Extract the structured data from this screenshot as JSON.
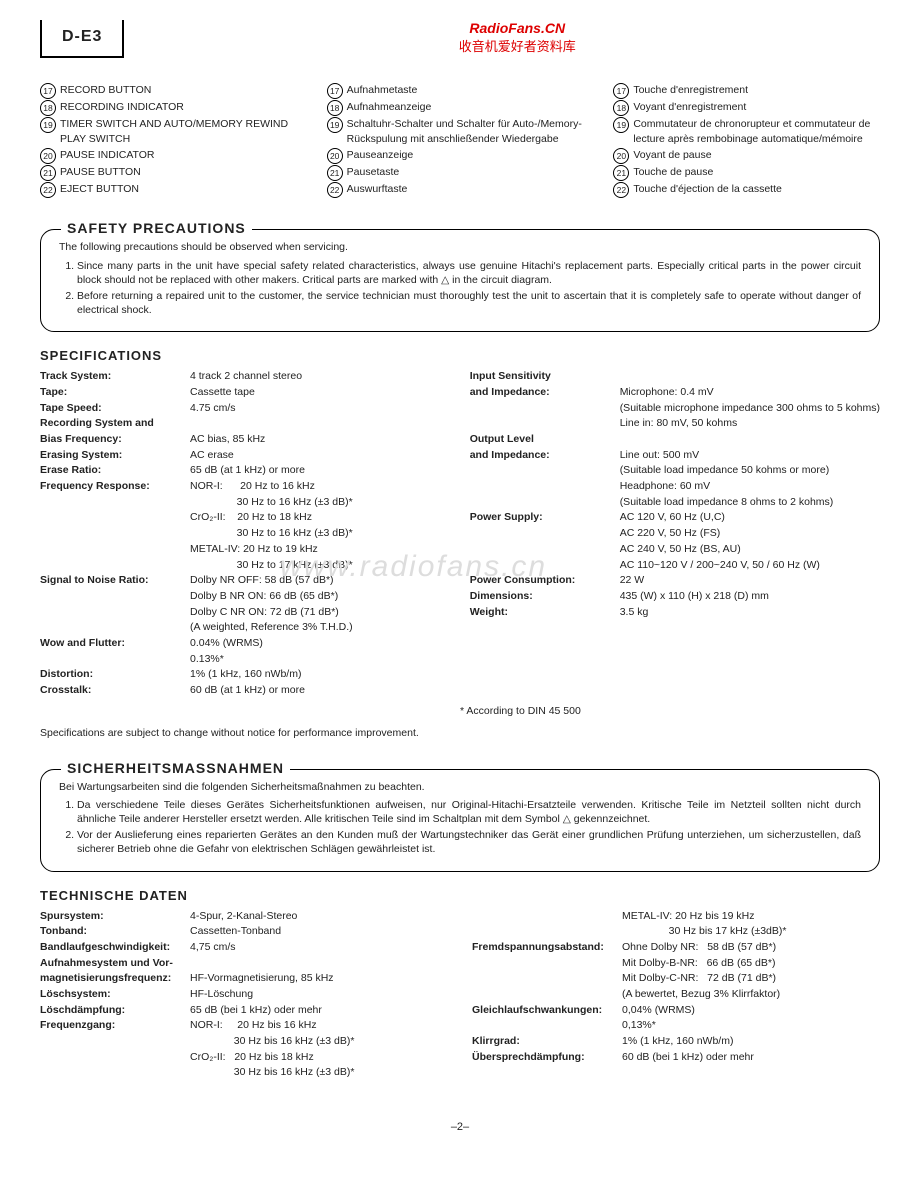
{
  "model": "D-E3",
  "watermark": {
    "url": "RadioFans.CN",
    "cn": "收音机爱好者资料库",
    "bg": "www.radiofans.cn"
  },
  "controls": {
    "en": [
      {
        "n": "17",
        "t": "RECORD BUTTON"
      },
      {
        "n": "18",
        "t": "RECORDING INDICATOR"
      },
      {
        "n": "19",
        "t": "TIMER SWITCH AND AUTO/MEMORY REWIND PLAY SWITCH"
      },
      {
        "n": "20",
        "t": "PAUSE INDICATOR"
      },
      {
        "n": "21",
        "t": "PAUSE BUTTON"
      },
      {
        "n": "22",
        "t": "EJECT BUTTON"
      }
    ],
    "de": [
      {
        "n": "17",
        "t": "Aufnahmetaste"
      },
      {
        "n": "18",
        "t": "Aufnahmeanzeige"
      },
      {
        "n": "19",
        "t": "Schaltuhr-Schalter und Schalter für Auto-/Memory-Rückspulung mit anschließender Wiedergabe"
      },
      {
        "n": "20",
        "t": "Pauseanzeige"
      },
      {
        "n": "21",
        "t": "Pausetaste"
      },
      {
        "n": "22",
        "t": "Auswurftaste"
      }
    ],
    "fr": [
      {
        "n": "17",
        "t": "Touche d'enregistrement"
      },
      {
        "n": "18",
        "t": "Voyant d'enregistrement"
      },
      {
        "n": "19",
        "t": "Commutateur de chronorupteur et commutateur de lecture après rembobinage automatique/mémoire"
      },
      {
        "n": "20",
        "t": "Voyant de pause"
      },
      {
        "n": "21",
        "t": "Touche de pause"
      },
      {
        "n": "22",
        "t": "Touche d'éjection de la cassette"
      }
    ]
  },
  "safety_en": {
    "title": "SAFETY PRECAUTIONS",
    "intro": "The following precautions should be observed when servicing.",
    "items": [
      "Since many parts in the unit have special safety related characteristics, always use genuine Hitachi's replacement parts. Especially critical parts in the power circuit block should not be replaced with other makers. Critical parts are marked with △ in the circuit diagram.",
      "Before returning a repaired unit to the customer, the service technician must thoroughly test the unit to ascertain that it is completely safe to operate without danger of electrical shock."
    ]
  },
  "specs_title": "SPECIFICATIONS",
  "specs_left": [
    {
      "l": "Track System:",
      "v": "4 track 2 channel stereo"
    },
    {
      "l": "Tape:",
      "v": "Cassette tape"
    },
    {
      "l": "Tape Speed:",
      "v": "4.75 cm/s"
    },
    {
      "l": "Recording System and",
      "v": ""
    },
    {
      "l": "Bias Frequency:",
      "v": "AC bias, 85 kHz"
    },
    {
      "l": "Erasing System:",
      "v": "AC erase"
    },
    {
      "l": "Erase Ratio:",
      "v": "65 dB (at 1 kHz) or more"
    },
    {
      "l": "Frequency Response:",
      "v": "NOR-I:      20 Hz to 16 kHz"
    },
    {
      "l": "",
      "v": "                30 Hz to 16 kHz (±3 dB)*"
    },
    {
      "l": "",
      "v": "CrO₂-II:    20 Hz to 18 kHz"
    },
    {
      "l": "",
      "v": "                30 Hz to 16 kHz (±3 dB)*"
    },
    {
      "l": "",
      "v": "METAL-IV: 20 Hz to 19 kHz"
    },
    {
      "l": "",
      "v": "                30 Hz to 17 kHz (±3 dB)*"
    },
    {
      "l": "Signal to Noise Ratio:",
      "v": "Dolby NR OFF: 58 dB (57 dB*)"
    },
    {
      "l": "",
      "v": "Dolby B NR ON: 66 dB (65 dB*)"
    },
    {
      "l": "",
      "v": "Dolby C NR ON: 72 dB (71 dB*)"
    },
    {
      "l": "",
      "v": "(A weighted, Reference 3% T.H.D.)"
    },
    {
      "l": "Wow and Flutter:",
      "v": "0.04% (WRMS)"
    },
    {
      "l": "",
      "v": "0.13%*"
    },
    {
      "l": "Distortion:",
      "v": "1% (1 kHz, 160 nWb/m)"
    },
    {
      "l": "Crosstalk:",
      "v": "60 dB (at 1 kHz) or more"
    }
  ],
  "specs_right": [
    {
      "l": "Input Sensitivity",
      "v": ""
    },
    {
      "l": "and Impedance:",
      "v": "Microphone: 0.4 mV"
    },
    {
      "l": "",
      "v": "(Suitable microphone impedance 300 ohms to 5 kohms)"
    },
    {
      "l": "",
      "v": "Line in: 80 mV, 50 kohms"
    },
    {
      "l": "Output Level",
      "v": ""
    },
    {
      "l": "and Impedance:",
      "v": "Line out: 500 mV"
    },
    {
      "l": "",
      "v": "(Suitable load impedance 50 kohms or more)"
    },
    {
      "l": "",
      "v": "Headphone: 60 mV"
    },
    {
      "l": "",
      "v": "(Suitable load impedance 8 ohms to 2 kohms)"
    },
    {
      "l": "Power Supply:",
      "v": "AC 120 V, 60 Hz (U,C)"
    },
    {
      "l": "",
      "v": "AC 220 V, 50 Hz (FS)"
    },
    {
      "l": "",
      "v": "AC 240 V, 50 Hz (BS, AU)"
    },
    {
      "l": "",
      "v": "AC 110~120 V / 200~240 V, 50 / 60 Hz (W)"
    },
    {
      "l": "Power Consumption:",
      "v": "22 W"
    },
    {
      "l": "Dimensions:",
      "v": "435 (W) x 110 (H) x 218 (D) mm"
    },
    {
      "l": "Weight:",
      "v": "3.5 kg"
    }
  ],
  "din_note": "* According to DIN 45 500",
  "change_note": "Specifications are subject to change without notice for performance improvement.",
  "safety_de": {
    "title": "SICHERHEITSMASSNAHMEN",
    "intro": "Bei Wartungsarbeiten sind die folgenden Sicherheitsmaßnahmen zu beachten.",
    "items": [
      "Da verschiedene Teile dieses Gerätes Sicherheitsfunktionen aufweisen, nur Original-Hitachi-Ersatzteile verwenden. Kritische Teile im Netzteil sollten nicht durch ähnliche Teile anderer Hersteller ersetzt werden. Alle kritischen Teile sind im Schaltplan mit dem Symbol △ gekennzeichnet.",
      "Vor der Auslieferung eines reparierten Gerätes an den Kunden muß der Wartungstechniker das Gerät einer grundlichen Prüfung unterziehen, um sicherzustellen, daß sicherer Betrieb ohne die Gefahr von elektrischen Schlägen gewährleistet ist."
    ]
  },
  "tech_title": "TECHNISCHE DATEN",
  "tech_left": [
    {
      "l": "Spursystem:",
      "v": "4-Spur, 2-Kanal-Stereo"
    },
    {
      "l": "Tonband:",
      "v": "Cassetten-Tonband"
    },
    {
      "l": "Bandlaufgeschwindigkeit:",
      "v": "4,75 cm/s"
    },
    {
      "l": "Aufnahmesystem und Vor-",
      "v": ""
    },
    {
      "l": "magnetisierungsfrequenz:",
      "v": "HF-Vormagnetisierung, 85 kHz"
    },
    {
      "l": "Löschsystem:",
      "v": "HF-Löschung"
    },
    {
      "l": "Löschdämpfung:",
      "v": "65 dB (bei 1 kHz) oder mehr"
    },
    {
      "l": "Frequenzgang:",
      "v": "NOR-I:     20 Hz bis 16 kHz"
    },
    {
      "l": "",
      "v": "               30 Hz bis 16 kHz (±3 dB)*"
    },
    {
      "l": "",
      "v": "CrO₂-II:   20 Hz bis 18 kHz"
    },
    {
      "l": "",
      "v": "               30 Hz bis 16 kHz (±3 dB)*"
    }
  ],
  "tech_right": [
    {
      "l": "",
      "v": "METAL-IV: 20 Hz bis 19 kHz"
    },
    {
      "l": "",
      "v": "                30 Hz bis 17 kHz (±3dB)*"
    },
    {
      "l": "Fremdspannungsabstand:",
      "v": "Ohne Dolby NR:   58 dB (57 dB*)"
    },
    {
      "l": "",
      "v": "Mit Dolby-B-NR:   66 dB (65 dB*)"
    },
    {
      "l": "",
      "v": "Mit Dolby-C-NR:   72 dB (71 dB*)"
    },
    {
      "l": "",
      "v": "(A bewertet, Bezug 3% Klirrfaktor)"
    },
    {
      "l": "Gleichlaufschwankungen:",
      "v": "0,04% (WRMS)"
    },
    {
      "l": "",
      "v": "0,13%*"
    },
    {
      "l": "Klirrgrad:",
      "v": "1% (1 kHz, 160 nWb/m)"
    },
    {
      "l": "Übersprechdämpfung:",
      "v": "60 dB (bei 1 kHz) oder mehr"
    }
  ],
  "page_num": "–2–"
}
